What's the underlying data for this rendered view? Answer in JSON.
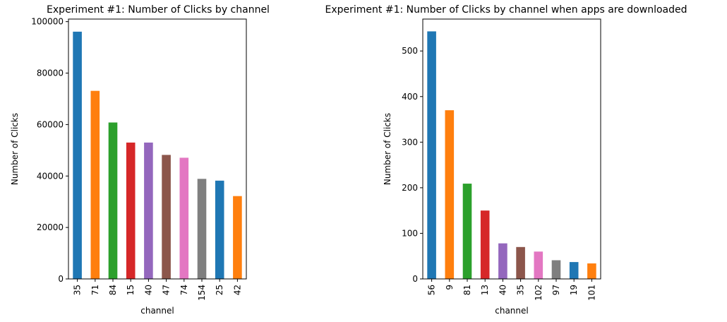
{
  "chart_data": [
    {
      "type": "bar",
      "title": "Experiment #1: Number of Clicks by channel",
      "xlabel": "channel",
      "ylabel": "Number of Clicks",
      "categories": [
        "35",
        "71",
        "84",
        "15",
        "40",
        "47",
        "74",
        "154",
        "25",
        "42"
      ],
      "values": [
        96100,
        73100,
        60800,
        53000,
        53000,
        48200,
        47100,
        38900,
        38200,
        32200
      ],
      "ylim": [
        0,
        101000
      ],
      "yticks": [
        0,
        20000,
        40000,
        60000,
        80000,
        100000
      ],
      "grid": false
    },
    {
      "type": "bar",
      "title": "Experiment #1: Number of Clicks by channel when apps are downloaded",
      "xlabel": "channel",
      "ylabel": "Number of Clicks",
      "categories": [
        "56",
        "9",
        "81",
        "13",
        "40",
        "35",
        "102",
        "97",
        "19",
        "101"
      ],
      "values": [
        543,
        370,
        209,
        150,
        78,
        70,
        60,
        41,
        37,
        34
      ],
      "ylim": [
        0,
        570
      ],
      "yticks": [
        0,
        100,
        200,
        300,
        400,
        500
      ],
      "grid": false
    }
  ],
  "colors": [
    "#1f77b4",
    "#ff7f0e",
    "#2ca02c",
    "#d62728",
    "#9467bd",
    "#8c564b",
    "#e377c2",
    "#7f7f7f",
    "#1f77b4",
    "#ff7f0e"
  ]
}
